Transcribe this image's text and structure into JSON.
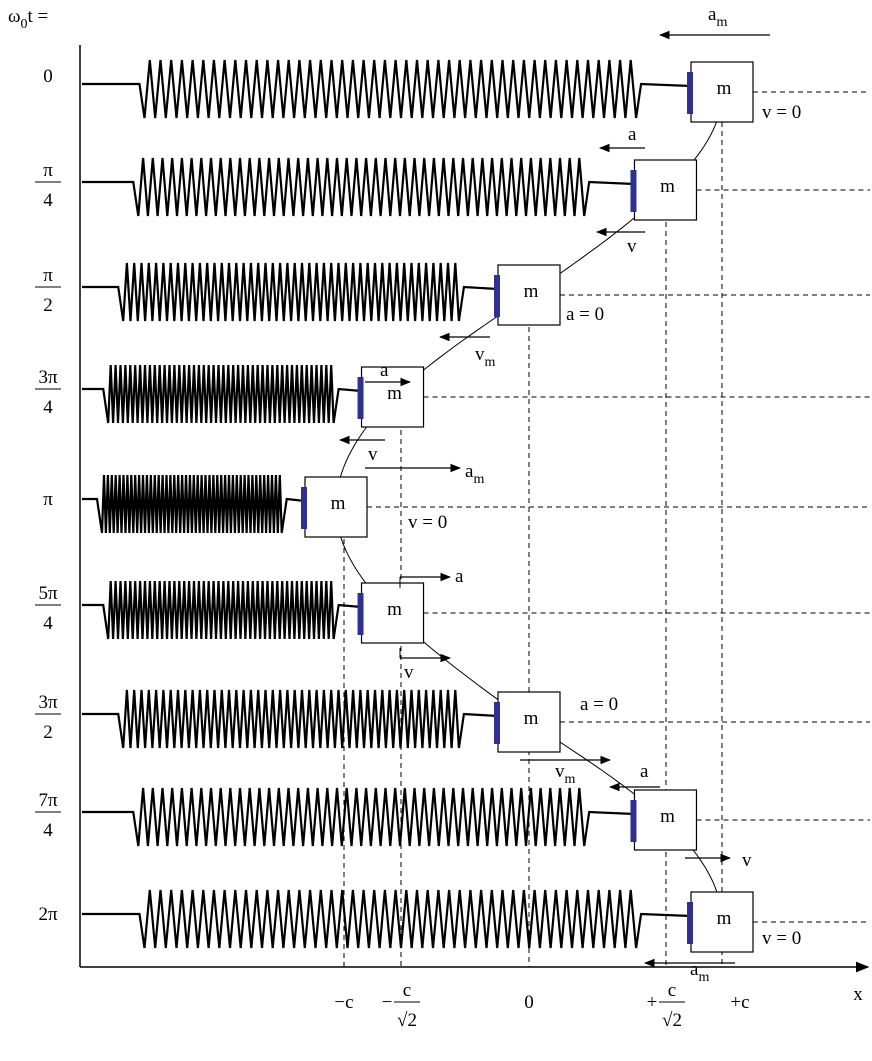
{
  "axis": {
    "y_label": {
      "base": "ω",
      "sub": "0",
      "rest": "t ="
    },
    "x_label": "x",
    "x_ticks": [
      {
        "text": "−c"
      },
      {
        "prefix": "−",
        "num": "c",
        "den": "√2"
      },
      {
        "text": "0"
      },
      {
        "prefix": "+",
        "num": "c",
        "den": "√2"
      },
      {
        "text": "+c"
      }
    ]
  },
  "rows": [
    {
      "label": {
        "text": "0"
      },
      "mass": "m"
    },
    {
      "label": {
        "num": "π",
        "den": "4"
      },
      "mass": "m"
    },
    {
      "label": {
        "num": "π",
        "den": "2"
      },
      "mass": "m"
    },
    {
      "label": {
        "num": "3π",
        "den": "4"
      },
      "mass": "m"
    },
    {
      "label": {
        "text": "π"
      },
      "mass": "m"
    },
    {
      "label": {
        "num": "5π",
        "den": "4"
      },
      "mass": "m"
    },
    {
      "label": {
        "num": "3π",
        "den": "2"
      },
      "mass": "m"
    },
    {
      "label": {
        "num": "7π",
        "den": "4"
      },
      "mass": "m"
    },
    {
      "label": {
        "text": "2π"
      },
      "mass": "m"
    }
  ],
  "annotations": [
    {
      "text": "a",
      "sub": "m"
    },
    {
      "text": "v = 0"
    },
    {
      "text": "a"
    },
    {
      "text": "v"
    },
    {
      "text": "a = 0"
    },
    {
      "text": "a"
    },
    {
      "text": "v",
      "sub": "m"
    },
    {
      "text": "v"
    },
    {
      "text": "a",
      "sub": "m"
    },
    {
      "text": "v = 0"
    },
    {
      "text": "a"
    },
    {
      "text": "v"
    },
    {
      "text": "a = 0"
    },
    {
      "text": "v",
      "sub": "m"
    },
    {
      "text": "a"
    },
    {
      "text": "v"
    },
    {
      "text": "v = 0"
    },
    {
      "text": "a",
      "sub": "m"
    }
  ]
}
